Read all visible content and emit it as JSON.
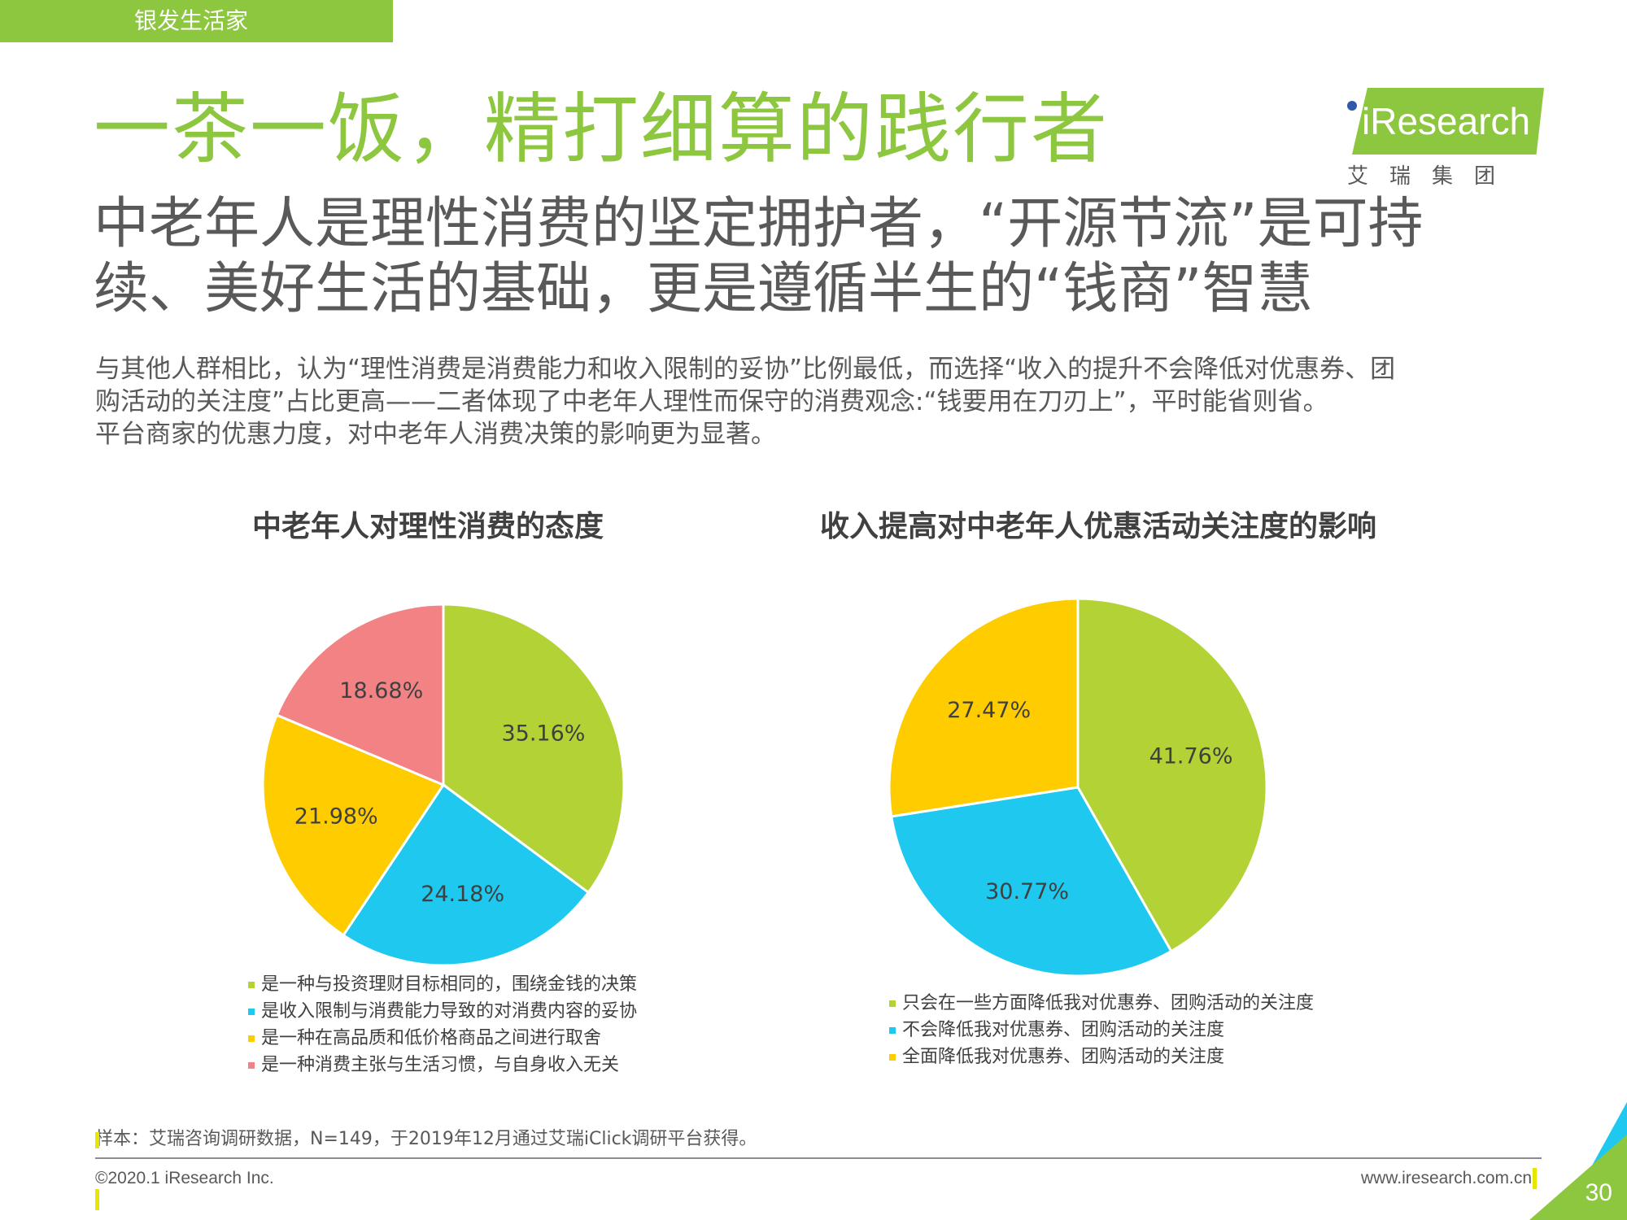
{
  "section_tab": "银发生活家",
  "title": "一茶一饭，精打细算的践行者",
  "logo": {
    "brand": "iResearch",
    "sub": "艾瑞集团"
  },
  "subtitle": {
    "line1": "中老年人是理性消费的坚定拥护者，“开源节流”是可持",
    "line2": "续、美好生活的基础，更是遵循半生的“钱商”智慧"
  },
  "body": {
    "line1": "与其他人群相比，认为“理性消费是消费能力和收入限制的妥协”比例最低，而选择“收入的提升不会降低对优惠券、团",
    "line2": "购活动的关注度”占比更高——二者体现了中老年人理性而保守的消费观念:“钱要用在刀刃上”，平时能省则省。",
    "line3": "平台商家的优惠力度，对中老年人消费决策的影响更为显著。"
  },
  "chart_data": [
    {
      "type": "pie",
      "title": "中老年人对理性消费的态度",
      "labels": [
        "是一种与投资理财目标相同的，围绕金钱的决策",
        "是收入限制与消费能力导致的对消费内容的妥协",
        "是一种在高品质和低价格商品之间进行取舍",
        "是一种消费主张与生活习惯，与自身收入无关"
      ],
      "values": [
        35.16,
        24.18,
        21.98,
        18.68
      ],
      "value_labels": [
        "35.16%",
        "24.18%",
        "21.98%",
        "18.68%"
      ],
      "colors": [
        "#b2d235",
        "#1ec8ef",
        "#ffcc00",
        "#f28284"
      ],
      "legend_position": "bottom"
    },
    {
      "type": "pie",
      "title": "收入提高对中老年人优惠活动关注度的影响",
      "labels": [
        "只会在一些方面降低我对优惠券、团购活动的关注度",
        "不会降低我对优惠券、团购活动的关注度",
        "全面降低我对优惠券、团购活动的关注度"
      ],
      "values": [
        41.76,
        30.77,
        27.47
      ],
      "value_labels": [
        "41.76%",
        "30.77%",
        "27.47%"
      ],
      "colors": [
        "#b2d235",
        "#1ec8ef",
        "#ffcc00"
      ],
      "legend_position": "bottom"
    }
  ],
  "footer": {
    "note": "样本：艾瑞咨询调研数据，N=149，于2019年12月通过艾瑞iClick调研平台获得。",
    "copyright": "©2020.1 iResearch Inc.",
    "website": "www.iresearch.com.cn",
    "page": "30"
  }
}
